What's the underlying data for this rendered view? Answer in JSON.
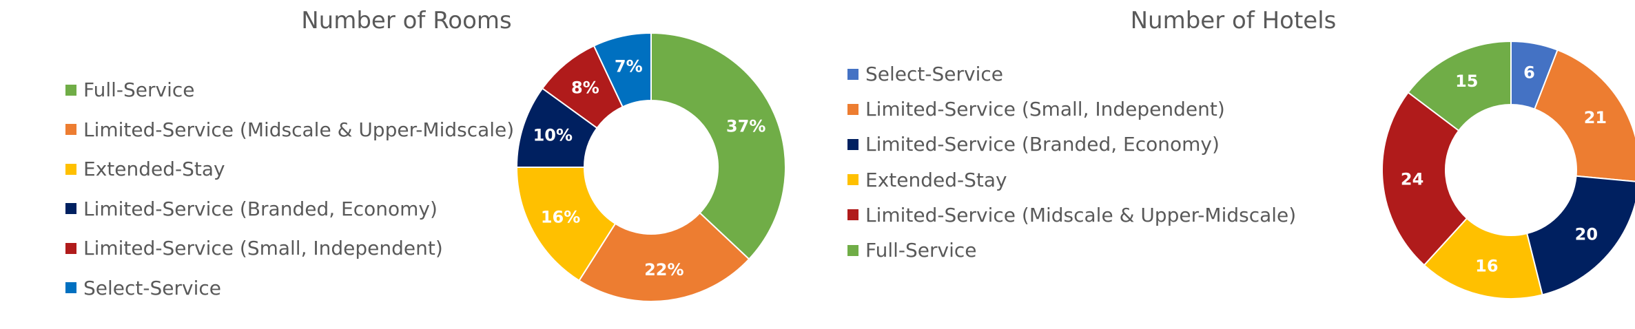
{
  "chart_data": [
    {
      "type": "pie",
      "title": "Number of Rooms",
      "legend_position": "left",
      "donut": true,
      "slices": [
        {
          "label": "Full-Service",
          "value": 37,
          "display": "37%",
          "color": "#70AD47"
        },
        {
          "label": "Limited-Service (Midscale & Upper-Midscale)",
          "value": 22,
          "display": "22%",
          "color": "#ED7D31"
        },
        {
          "label": "Extended-Stay",
          "value": 16,
          "display": "16%",
          "color": "#FFC000"
        },
        {
          "label": "Limited-Service (Branded, Economy)",
          "value": 10,
          "display": "10%",
          "color": "#002060"
        },
        {
          "label": "Limited-Service (Small, Independent)",
          "value": 8,
          "display": "8%",
          "color": "#B01B1B"
        },
        {
          "label": "Select-Service",
          "value": 7,
          "display": "7%",
          "color": "#0070C0"
        }
      ]
    },
    {
      "type": "pie",
      "title": "Number of Hotels",
      "legend_position": "left",
      "donut": true,
      "slices": [
        {
          "label": "Select-Service",
          "value": 6,
          "display": "6",
          "color": "#4472C4"
        },
        {
          "label": "Limited-Service (Small, Independent)",
          "value": 21,
          "display": "21",
          "color": "#ED7D31"
        },
        {
          "label": "Limited-Service (Branded, Economy)",
          "value": 20,
          "display": "20",
          "color": "#002060"
        },
        {
          "label": "Extended-Stay",
          "value": 16,
          "display": "16",
          "color": "#FFC000"
        },
        {
          "label": "Limited-Service (Midscale & Upper-Midscale)",
          "value": 24,
          "display": "24",
          "color": "#B01B1B"
        },
        {
          "label": "Full-Service",
          "value": 15,
          "display": "15",
          "color": "#70AD47"
        }
      ]
    }
  ]
}
